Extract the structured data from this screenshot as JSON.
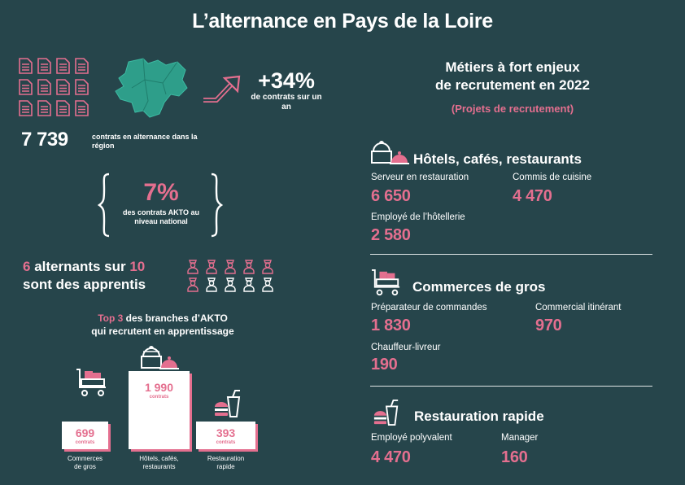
{
  "title": "L’alternance en Pays de la Loire",
  "region": {
    "contracts_count": "7 739",
    "contracts_caption": "contrats en alternance dans la région",
    "growth_value": "+34%",
    "growth_caption": "de contrats sur un an",
    "national_share": "7%",
    "national_caption": "des contrats AKTO au niveau national",
    "apprentices_line1_num": "6",
    "apprentices_line1_mid": " alternants sur ",
    "apprentices_line1_den": "10",
    "apprentices_line2": "sont des apprentis",
    "apprentices_ratio": [
      6,
      10
    ]
  },
  "top3": {
    "title_highlight": "Top 3",
    "title_rest": " des branches d’AKTO",
    "title_line2": "qui recrutent en apprentissage",
    "unit": "contrats"
  },
  "chart_data": {
    "type": "bar",
    "categories": [
      "Commerces de gros",
      "Hôtels, cafés, restaurants",
      "Restauration rapide"
    ],
    "category_lines": [
      [
        "Commerces",
        "de gros"
      ],
      [
        "Hôtels, cafés,",
        "restaurants"
      ],
      [
        "Restauration",
        "rapide"
      ]
    ],
    "values": [
      699,
      1990,
      393
    ],
    "value_labels": [
      "699",
      "1 990",
      "393"
    ],
    "unit": "contrats"
  },
  "right": {
    "title_line1": "Métiers à fort enjeux",
    "title_line2": "de recrutement en 2022",
    "subtitle": "(Projets de recrutement)",
    "sections": [
      {
        "name": "Hôtels, cafés, restaurants",
        "icon": "cloche-icon",
        "jobs": [
          {
            "label": "Serveur en restauration",
            "value": "6 650"
          },
          {
            "label": "Commis de cuisine",
            "value": "4 470"
          },
          {
            "label": "Employé de l’hôtellerie",
            "value": "2 580"
          }
        ]
      },
      {
        "name": "Commerces de gros",
        "icon": "cart-icon",
        "jobs": [
          {
            "label": "Préparateur de commandes",
            "value": "1 830"
          },
          {
            "label": "Commercial itinérant",
            "value": "970"
          },
          {
            "label": "Chauffeur-livreur",
            "value": "190"
          }
        ]
      },
      {
        "name": "Restauration rapide",
        "icon": "fastfood-icon",
        "jobs": [
          {
            "label": "Employé polyvalent",
            "value": "4 470"
          },
          {
            "label": "Manager",
            "value": "160"
          }
        ]
      }
    ]
  },
  "colors": {
    "background": "#26454b",
    "accent": "#e46f8f",
    "text": "#ffffff"
  }
}
